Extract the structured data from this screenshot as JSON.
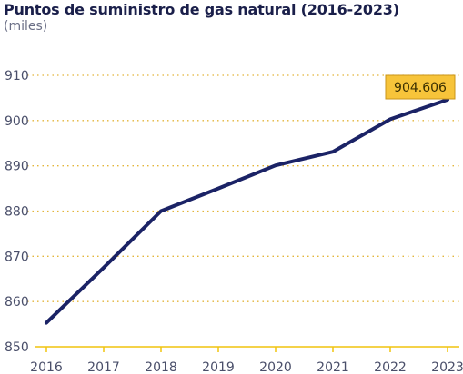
{
  "chart_data": {
    "type": "line",
    "title": "Puntos de suministro de gas natural (2016-2023)",
    "subtitle": "(miles)",
    "xlabel": "",
    "ylabel": "",
    "x": [
      "2016",
      "2017",
      "2018",
      "2019",
      "2020",
      "2021",
      "2022",
      "2023"
    ],
    "series": [
      {
        "values": [
          855.3,
          867.5,
          880.0,
          885.0,
          890.1,
          893.1,
          900.3,
          904.606
        ]
      }
    ],
    "ylim": [
      850,
      910
    ],
    "yticks": [
      "850",
      "860",
      "870",
      "880",
      "890",
      "900",
      "910"
    ],
    "grid": true,
    "annotation": {
      "text": "904.606",
      "x": "2023"
    },
    "colors": {
      "line": "#1b2366",
      "grid": "#e3b53a",
      "axis": "#f1c40f",
      "callout": "#f7c43a"
    }
  }
}
